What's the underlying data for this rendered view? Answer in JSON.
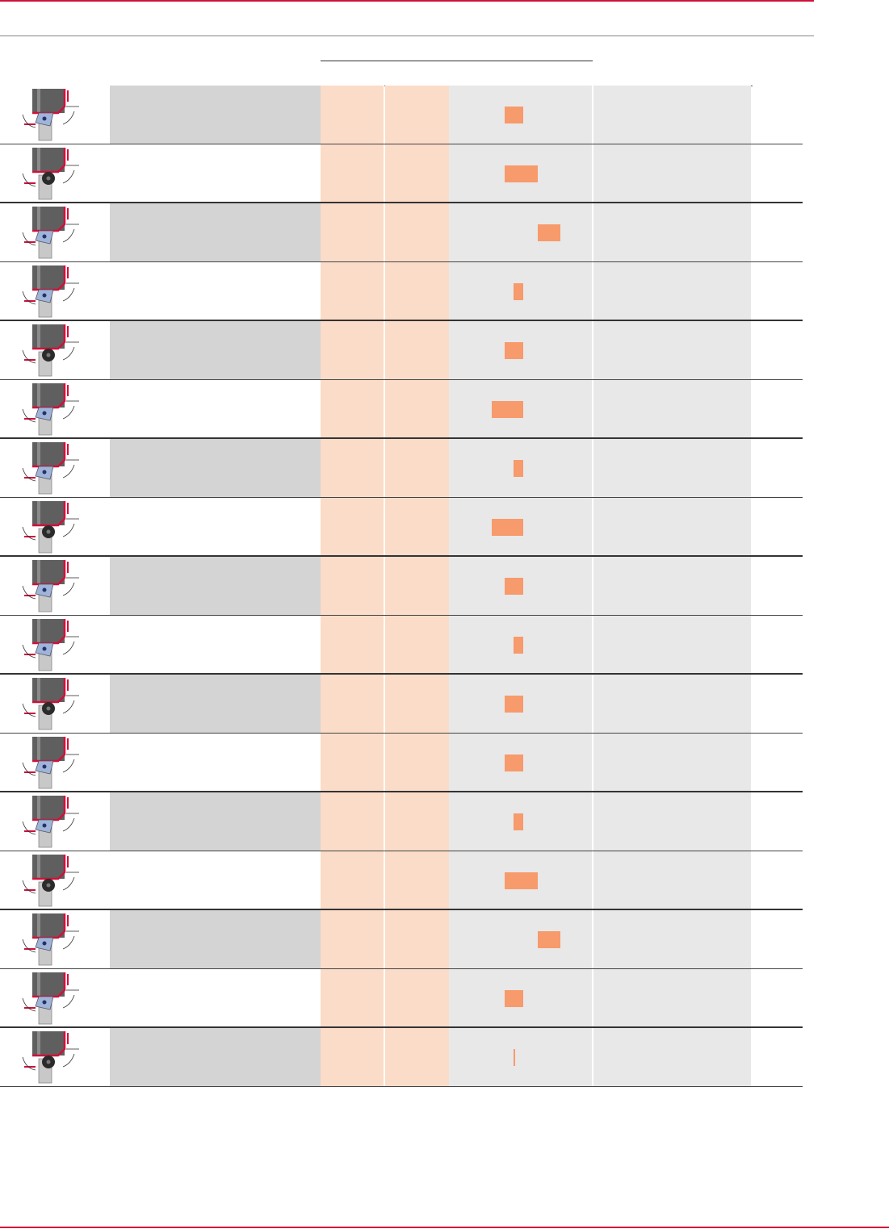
{
  "colors": {
    "accent": "#d0103a",
    "peach": "#fbdcc8",
    "bar": "#f79a6c",
    "grey_shaded": "#d4d4d4",
    "grey_light": "#e8e8e8"
  },
  "rows": [
    {
      "icon": "tool-holder-icon",
      "shaded": true,
      "bar": {
        "start": 0.39,
        "width": 0.13
      }
    },
    {
      "icon": "tool-holder-icon",
      "shaded": false,
      "bar": {
        "start": 0.39,
        "width": 0.23
      }
    },
    {
      "icon": "tool-holder-icon",
      "shaded": true,
      "bar": {
        "start": 0.62,
        "width": 0.16
      }
    },
    {
      "icon": "tool-holder-icon",
      "shaded": false,
      "bar": {
        "start": 0.45,
        "width": 0.07
      }
    },
    {
      "icon": "tool-holder-icon",
      "shaded": true,
      "bar": {
        "start": 0.39,
        "width": 0.13
      }
    },
    {
      "icon": "tool-holder-icon",
      "shaded": false,
      "bar": {
        "start": 0.3,
        "width": 0.22
      }
    },
    {
      "icon": "tool-holder-icon",
      "shaded": true,
      "bar": {
        "start": 0.45,
        "width": 0.07
      }
    },
    {
      "icon": "tool-holder-icon",
      "shaded": false,
      "bar": {
        "start": 0.3,
        "width": 0.22
      }
    },
    {
      "icon": "tool-holder-icon",
      "shaded": true,
      "bar": {
        "start": 0.39,
        "width": 0.13
      }
    },
    {
      "icon": "tool-holder-icon",
      "shaded": false,
      "bar": {
        "start": 0.45,
        "width": 0.07
      }
    },
    {
      "icon": "tool-holder-icon",
      "shaded": true,
      "bar": {
        "start": 0.39,
        "width": 0.13
      }
    },
    {
      "icon": "tool-holder-icon",
      "shaded": false,
      "bar": {
        "start": 0.39,
        "width": 0.13
      }
    },
    {
      "icon": "tool-holder-icon",
      "shaded": true,
      "bar": {
        "start": 0.45,
        "width": 0.07
      }
    },
    {
      "icon": "tool-holder-icon",
      "shaded": false,
      "bar": {
        "start": 0.39,
        "width": 0.23
      }
    },
    {
      "icon": "tool-holder-icon",
      "shaded": true,
      "bar": {
        "start": 0.62,
        "width": 0.16
      }
    },
    {
      "icon": "tool-holder-icon",
      "shaded": false,
      "bar": {
        "start": 0.39,
        "width": 0.13
      }
    },
    {
      "icon": "tool-holder-icon",
      "shaded": true,
      "bar": {
        "start": 0.45,
        "width": 0.01
      }
    }
  ]
}
